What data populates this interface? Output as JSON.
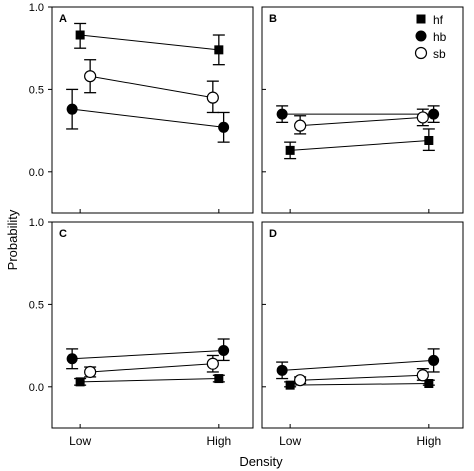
{
  "chart_data": {
    "type": "scatter",
    "xlabel": "Density",
    "ylabel": "Probability",
    "categories": [
      "Low",
      "High"
    ],
    "ylim": [
      0.0,
      1.0
    ],
    "yticks": [
      "0.0",
      "0.5",
      "1.0"
    ],
    "grid": false,
    "legend": {
      "placement": "top-right of panel B",
      "entries": [
        {
          "name": "hf",
          "marker": "filled-square"
        },
        {
          "name": "hb",
          "marker": "filled-circle"
        },
        {
          "name": "sb",
          "marker": "open-circle"
        }
      ]
    },
    "panels": [
      {
        "label": "A",
        "series": [
          {
            "name": "hf",
            "values": [
              0.83,
              0.74
            ],
            "error_low": [
              0.75,
              0.65
            ],
            "error_high": [
              0.9,
              0.83
            ]
          },
          {
            "name": "hb",
            "values": [
              0.38,
              0.27
            ],
            "error_low": [
              0.26,
              0.18
            ],
            "error_high": [
              0.5,
              0.36
            ]
          },
          {
            "name": "sb",
            "values": [
              0.58,
              0.45
            ],
            "error_low": [
              0.48,
              0.36
            ],
            "error_high": [
              0.68,
              0.55
            ]
          }
        ]
      },
      {
        "label": "B",
        "series": [
          {
            "name": "hf",
            "values": [
              0.13,
              0.19
            ],
            "error_low": [
              0.08,
              0.13
            ],
            "error_high": [
              0.18,
              0.26
            ]
          },
          {
            "name": "hb",
            "values": [
              0.35,
              0.35
            ],
            "error_low": [
              0.3,
              0.3
            ],
            "error_high": [
              0.4,
              0.4
            ]
          },
          {
            "name": "sb",
            "values": [
              0.28,
              0.33
            ],
            "error_low": [
              0.23,
              0.28
            ],
            "error_high": [
              0.34,
              0.38
            ]
          }
        ]
      },
      {
        "label": "C",
        "series": [
          {
            "name": "hf",
            "values": [
              0.03,
              0.05
            ],
            "error_low": [
              0.01,
              0.03
            ],
            "error_high": [
              0.05,
              0.07
            ]
          },
          {
            "name": "hb",
            "values": [
              0.17,
              0.22
            ],
            "error_low": [
              0.11,
              0.16
            ],
            "error_high": [
              0.23,
              0.29
            ]
          },
          {
            "name": "sb",
            "values": [
              0.09,
              0.14
            ],
            "error_low": [
              0.06,
              0.09
            ],
            "error_high": [
              0.12,
              0.19
            ]
          }
        ]
      },
      {
        "label": "D",
        "series": [
          {
            "name": "hf",
            "values": [
              0.01,
              0.02
            ],
            "error_low": [
              0.0,
              0.01
            ],
            "error_high": [
              0.03,
              0.04
            ]
          },
          {
            "name": "hb",
            "values": [
              0.1,
              0.16
            ],
            "error_low": [
              0.05,
              0.09
            ],
            "error_high": [
              0.15,
              0.23
            ]
          },
          {
            "name": "sb",
            "values": [
              0.04,
              0.07
            ],
            "error_low": [
              0.02,
              0.04
            ],
            "error_high": [
              0.06,
              0.11
            ]
          }
        ]
      }
    ]
  }
}
